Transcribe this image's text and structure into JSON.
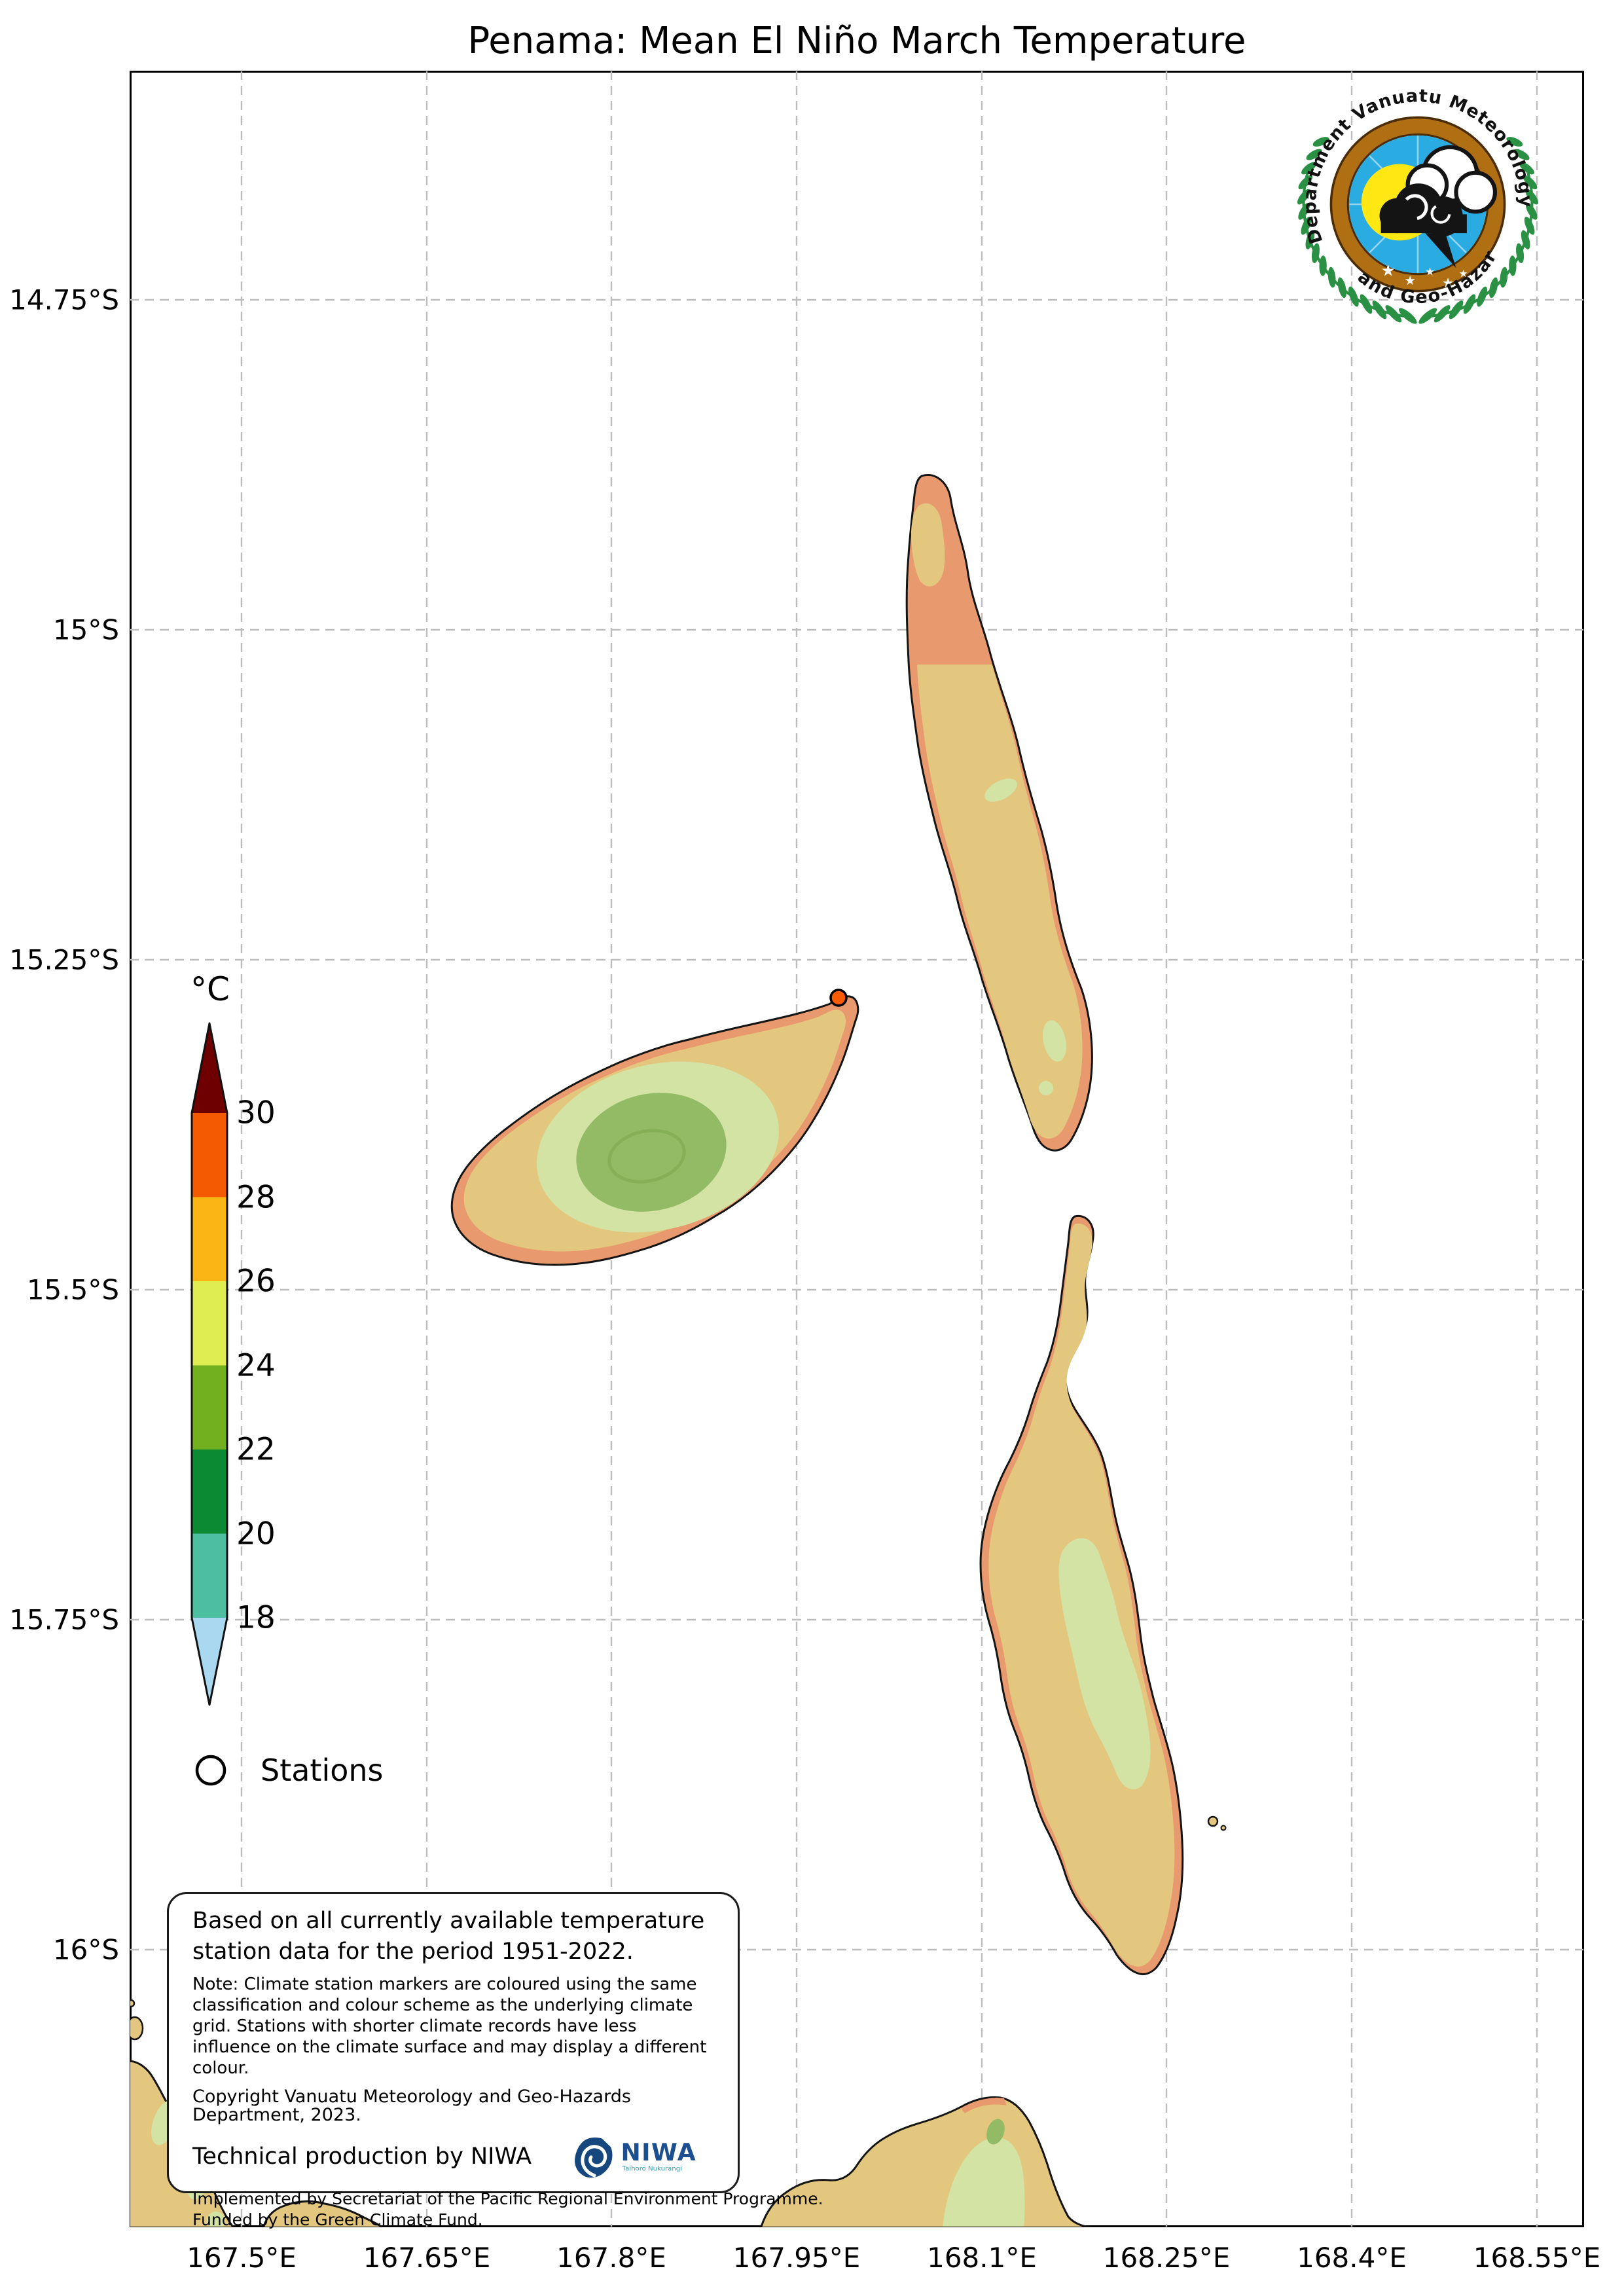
{
  "title": "Penama: Mean El Niño March Temperature",
  "vmgd_logo": {
    "arc_top": "Department Vanuatu Meteorology",
    "arc_bottom": "and Geo-Hazards"
  },
  "axes": {
    "x_ticks": [
      "167.5°E",
      "167.65°E",
      "167.8°E",
      "167.95°E",
      "168.1°E",
      "168.25°E",
      "168.4°E",
      "168.55°E"
    ],
    "y_ticks": [
      "14.75°S",
      "15°S",
      "15.25°S",
      "15.5°S",
      "15.75°S",
      "16°S"
    ]
  },
  "colorbar": {
    "title": "°C",
    "tick_labels": [
      "30",
      "28",
      "26",
      "24",
      "22",
      "20",
      "18"
    ],
    "bands": [
      {
        "range": "above 30",
        "color": "#6e0002"
      },
      {
        "range": "28-30",
        "color": "#f45a02"
      },
      {
        "range": "26-28",
        "color": "#fbb616"
      },
      {
        "range": "24-26",
        "color": "#dfec52"
      },
      {
        "range": "22-24",
        "color": "#73b01f"
      },
      {
        "range": "20-22",
        "color": "#0b8a33"
      },
      {
        "range": "18-20",
        "color": "#4dbfa0"
      },
      {
        "range": "below 18",
        "color": "#a9d8f0"
      }
    ]
  },
  "legend": {
    "stations_label": "Stations"
  },
  "infobox": {
    "summary": "Based on all currently available temperature station data for the period 1951-2022.",
    "note": "Note: Climate station markers are coloured using the same classification and colour scheme as the underlying climate grid. Stations with shorter climate records have less influence on the climate surface and may display a different colour.",
    "copyright": "Copyright Vanuatu Meteorology and Geo-Hazards Department, 2023.",
    "production": "Technical production by NIWA",
    "implemented": "Implemented by Secretariat of the Pacific Regional Environment Programme.",
    "funded": "Funded by the Green Climate Fund."
  },
  "niwa_logo": {
    "name": "NIWA",
    "tagline": "Taihoro Nukurangi"
  },
  "map": {
    "station_marker": {
      "color": "#fb5c02"
    },
    "land_colors": {
      "coast_28_30": "#e9996e",
      "land_26_28": "#e4c77e",
      "land_24_26": "#d3e3a4",
      "land_22_24": "#93ba65",
      "summit_22_24_dark": "#86b057"
    },
    "grid_color": "#bdbdbd",
    "coastline_color": "#141414"
  }
}
